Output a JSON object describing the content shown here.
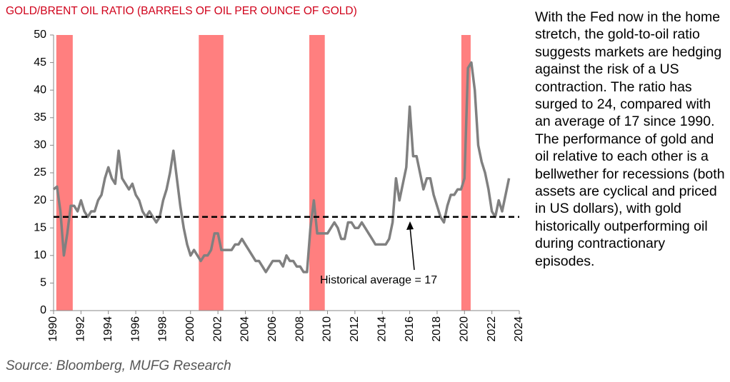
{
  "chart_data": {
    "type": "line",
    "title": "GOLD/BRENT OIL RATIO (BARRELS OF OIL PER OUNCE OF GOLD)",
    "source": "Source: Bloomberg, MUFG Research",
    "commentary": "With the Fed now in the home stretch, the gold-to-oil ratio suggests markets are hedging against the risk of a US contraction. The ratio has surged to 24, compared with an average of 17 since 1990. The performance of gold and oil relative to each other is a bellwether for recessions (both assets are cyclical and priced in US dollars), with gold historically outperforming oil during contractionary episodes.",
    "color": "#808080",
    "x": [
      1990,
      1990.25,
      1990.5,
      1990.75,
      1991,
      1991.25,
      1991.5,
      1991.75,
      1992,
      1992.25,
      1992.5,
      1992.75,
      1993,
      1993.25,
      1993.5,
      1993.75,
      1994,
      1994.25,
      1994.5,
      1994.75,
      1995,
      1995.25,
      1995.5,
      1995.75,
      1996,
      1996.25,
      1996.5,
      1996.75,
      1997,
      1997.25,
      1997.5,
      1997.75,
      1998,
      1998.25,
      1998.5,
      1998.75,
      1999,
      1999.25,
      1999.5,
      1999.75,
      2000,
      2000.25,
      2000.5,
      2000.75,
      2001,
      2001.25,
      2001.5,
      2001.75,
      2002,
      2002.25,
      2002.5,
      2002.75,
      2003,
      2003.25,
      2003.5,
      2003.75,
      2004,
      2004.25,
      2004.5,
      2004.75,
      2005,
      2005.25,
      2005.5,
      2005.75,
      2006,
      2006.25,
      2006.5,
      2006.75,
      2007,
      2007.25,
      2007.5,
      2007.75,
      2008,
      2008.25,
      2008.5,
      2008.75,
      2009,
      2009.25,
      2009.5,
      2009.75,
      2010,
      2010.25,
      2010.5,
      2010.75,
      2011,
      2011.25,
      2011.5,
      2011.75,
      2012,
      2012.25,
      2012.5,
      2012.75,
      2013,
      2013.25,
      2013.5,
      2013.75,
      2014,
      2014.25,
      2014.5,
      2014.75,
      2015,
      2015.25,
      2015.5,
      2015.75,
      2016,
      2016.25,
      2016.5,
      2016.75,
      2017,
      2017.25,
      2017.5,
      2017.75,
      2018,
      2018.25,
      2018.5,
      2018.75,
      2019,
      2019.25,
      2019.5,
      2019.75,
      2020,
      2020.25,
      2020.5,
      2020.75,
      2021,
      2021.25,
      2021.5,
      2021.75,
      2022,
      2022.25,
      2022.5,
      2022.75,
      2023,
      2023.25
    ],
    "values": [
      22,
      22.5,
      18,
      10,
      14,
      19,
      19,
      18,
      20,
      18,
      17,
      18,
      18,
      20,
      21,
      24,
      26,
      24,
      23,
      29,
      24,
      23,
      22,
      23,
      21,
      20,
      18,
      17,
      18,
      17,
      16,
      17,
      20,
      22,
      25,
      29,
      24,
      19,
      15,
      12,
      10,
      11,
      10,
      9,
      10,
      10,
      11,
      14,
      14,
      11,
      11,
      11,
      11,
      12,
      12,
      13,
      12,
      11,
      10,
      9,
      9,
      8,
      7,
      8,
      9,
      9,
      9,
      8,
      10,
      9,
      9,
      8,
      8,
      7,
      7,
      15,
      20,
      14,
      14,
      14,
      14,
      15,
      16,
      15,
      13,
      13,
      16,
      16,
      15,
      15,
      16,
      15,
      14,
      13,
      12,
      12,
      12,
      12,
      13,
      16,
      24,
      20,
      23,
      26,
      37,
      28,
      28,
      25,
      22,
      24,
      24,
      21,
      19,
      17,
      16,
      19,
      21,
      21,
      22,
      22,
      24,
      44,
      45,
      40,
      30,
      27,
      25,
      22,
      18,
      17,
      20,
      18,
      21,
      24
    ],
    "recessions": [
      [
        1990.2,
        1991.4
      ],
      [
        2000.6,
        2002.4
      ],
      [
        2008.67,
        2009.8
      ],
      [
        2019.77,
        2020.45
      ]
    ],
    "reference_line": {
      "value": 17,
      "label": "Historical average = 17"
    },
    "xlim": [
      1990,
      2024
    ],
    "xticks": [
      1990,
      1992,
      1994,
      1996,
      1998,
      2000,
      2002,
      2004,
      2006,
      2008,
      2010,
      2012,
      2014,
      2016,
      2018,
      2020,
      2022,
      2024
    ],
    "ylim": [
      0,
      50
    ],
    "yticks": [
      0,
      5,
      10,
      15,
      20,
      25,
      30,
      35,
      40,
      45,
      50
    ],
    "grid": false
  }
}
